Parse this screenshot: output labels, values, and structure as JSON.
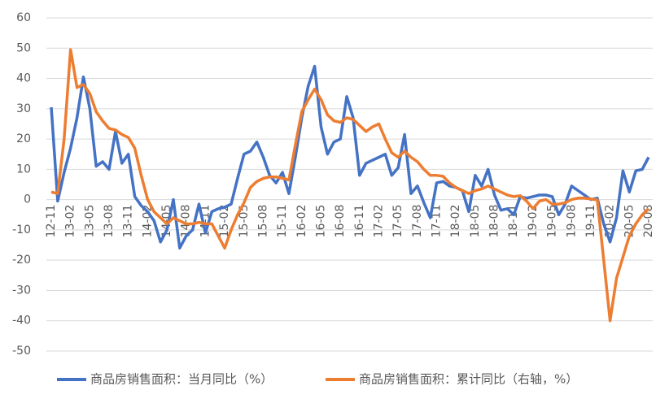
{
  "chart_data": {
    "type": "line",
    "categories": [
      "12-11",
      null,
      null,
      "13-02",
      null,
      null,
      "13-05",
      null,
      null,
      "13-08",
      null,
      null,
      "13-11",
      null,
      null,
      "14-02",
      null,
      null,
      "14-05",
      null,
      null,
      "14-08",
      null,
      null,
      "14-11",
      null,
      null,
      "15-02",
      null,
      null,
      "15-05",
      null,
      null,
      "15-08",
      null,
      null,
      "15-11",
      null,
      null,
      "16-02",
      null,
      null,
      "16-05",
      null,
      null,
      "16-08",
      null,
      null,
      "16-11",
      null,
      null,
      "17-02",
      null,
      null,
      "17-05",
      null,
      null,
      "17-08",
      null,
      null,
      "17-11",
      null,
      null,
      "18-02",
      null,
      null,
      "18-05",
      null,
      null,
      "18-08",
      null,
      null,
      "18-11",
      null,
      null,
      "19-02",
      null,
      null,
      "19-05",
      null,
      null,
      "19-08",
      null,
      null,
      "19-11",
      null,
      null,
      "20-02",
      null,
      null,
      "20-05",
      null,
      null,
      "20-08"
    ],
    "series": [
      {
        "name": "商品房销售面积：当月同比（%）",
        "color": "#4472c4",
        "values": [
          30.5,
          -0.5,
          9,
          17,
          27,
          40.5,
          30,
          11,
          12.5,
          10,
          22.5,
          12,
          15,
          1,
          -2,
          -4,
          -7,
          -14,
          -10,
          0,
          -16,
          -12,
          -10,
          -1.5,
          -11,
          -4,
          -3,
          -2.5,
          -1.5,
          7,
          15,
          16,
          19,
          14,
          8,
          5.5,
          9,
          2,
          14,
          27,
          37.5,
          44,
          24,
          15,
          19,
          20,
          34,
          27,
          8,
          12,
          13,
          14,
          15,
          8,
          10.5,
          21.5,
          2,
          4.5,
          -1,
          -6,
          5.5,
          6,
          4.5,
          4,
          3,
          -4,
          8,
          4.5,
          10,
          1.5,
          -3.5,
          -3,
          -5,
          1,
          0.5,
          1,
          1.5,
          1.5,
          1,
          -5,
          -1.5,
          4.5,
          3,
          1.5,
          0,
          0.5,
          -8,
          -14,
          -6,
          9.5,
          2.5,
          9.5,
          10,
          14
        ]
      },
      {
        "name": "商品房销售面积：累计同比（右轴，%）",
        "color": "#ed7d31",
        "values": [
          2.5,
          2,
          20,
          49.5,
          37,
          38,
          35,
          29,
          26,
          23.5,
          23,
          21.5,
          20.5,
          17,
          8,
          0,
          -4,
          -6,
          -8,
          -6,
          -7,
          -8,
          -8,
          -7.5,
          -8,
          -8,
          -12,
          -16,
          -10,
          -5,
          -1,
          4,
          6,
          7,
          7.5,
          7.5,
          7,
          6.5,
          18,
          29,
          33,
          36.5,
          33,
          28,
          26,
          25.5,
          27,
          26.5,
          24.5,
          22.5,
          24,
          25,
          20,
          15.5,
          14,
          16,
          14,
          12.5,
          10,
          8,
          8,
          7.7,
          5.5,
          4,
          3,
          2,
          3,
          3.5,
          4.5,
          3.5,
          2.5,
          1.5,
          1,
          1.3,
          -0.5,
          -3,
          -0.5,
          0,
          -1.5,
          -1.5,
          -1,
          0,
          0.5,
          0.5,
          0.2,
          -0.1,
          -20,
          -40,
          -26,
          -19,
          -12,
          -8,
          -5,
          -3
        ]
      }
    ],
    "ylim": [
      -50,
      60
    ],
    "yticks": [
      -50,
      -40,
      -30,
      -20,
      -10,
      0,
      10,
      20,
      30,
      40,
      50,
      60
    ],
    "grid": true
  }
}
